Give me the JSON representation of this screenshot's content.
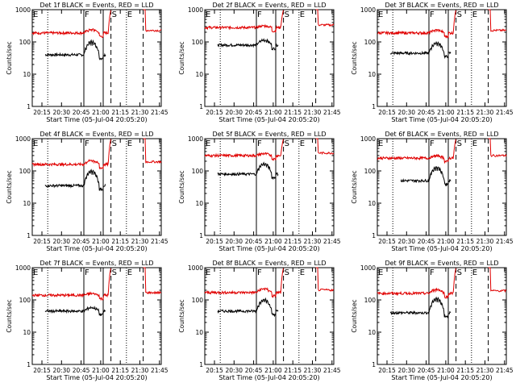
{
  "figure": {
    "ylabel": "Counts/sec",
    "xlabel": "Start Time (05-Jul-04 20:05:20)",
    "black_series_color": "#000000",
    "red_series_color": "#e00000",
    "axes_color": "#000000"
  },
  "chart_data": [
    {
      "type": "line",
      "title": "Det 1f  BLACK = Events, RED = LLD",
      "xlabel": "Start Time (05-Jul-04 20:05:20)",
      "ylabel": "Counts/sec",
      "yscale": "log",
      "x_ticks": [
        "20:15",
        "20:30",
        "20:45",
        "21:00",
        "21:15",
        "21:30",
        "21:45"
      ],
      "y_ticks": [
        "1",
        "10",
        "100",
        "1000"
      ],
      "ylim": [
        1,
        1000
      ],
      "xlim_minutes": [
        0,
        100
      ],
      "series": [
        {
          "color": "black",
          "x_range_minutes": [
            10,
            57
          ],
          "baseline": 40,
          "bump": 110
        },
        {
          "color": "red",
          "x_range_minutes": [
            0,
            100
          ],
          "baseline": 190,
          "bump": 250,
          "spike": 1000
        }
      ],
      "markers": [
        {
          "label": "E",
          "x_minutes": 0,
          "style": "solid"
        },
        {
          "label": "",
          "x_minutes": 12.0,
          "style": "dotted"
        },
        {
          "label": "F",
          "x_minutes": 40.0,
          "style": "solid"
        },
        {
          "label": "",
          "x_minutes": 55.0,
          "style": "solid"
        },
        {
          "label": "S",
          "x_minutes": 61.0,
          "style": "dashed"
        },
        {
          "label": "E",
          "x_minutes": 73.0,
          "style": "dotted"
        },
        {
          "label": "",
          "x_minutes": 86.0,
          "style": "dashed"
        }
      ]
    },
    {
      "type": "line",
      "title": "Det 2f  BLACK = Events, RED = LLD",
      "xlabel": "Start Time (05-Jul-04 20:05:20)",
      "ylabel": "Counts/sec",
      "yscale": "log",
      "x_ticks": [
        "20:15",
        "20:30",
        "20:45",
        "21:00",
        "21:15",
        "21:30",
        "21:45"
      ],
      "y_ticks": [
        "1",
        "10",
        "100",
        "1000"
      ],
      "ylim": [
        1,
        1000
      ],
      "xlim_minutes": [
        0,
        100
      ],
      "series": [
        {
          "color": "black",
          "x_range_minutes": [
            10,
            57
          ],
          "baseline": 80,
          "bump": 120
        },
        {
          "color": "red",
          "x_range_minutes": [
            0,
            100
          ],
          "baseline": 280,
          "bump": 320,
          "spike": 1000
        }
      ],
      "markers": [
        {
          "label": "E",
          "x_minutes": 0,
          "style": "solid"
        },
        {
          "label": "",
          "x_minutes": 12.0,
          "style": "dotted"
        },
        {
          "label": "F",
          "x_minutes": 40.0,
          "style": "solid"
        },
        {
          "label": "",
          "x_minutes": 55.0,
          "style": "solid"
        },
        {
          "label": "S",
          "x_minutes": 61.0,
          "style": "dashed"
        },
        {
          "label": "E",
          "x_minutes": 73.0,
          "style": "dotted"
        },
        {
          "label": "",
          "x_minutes": 86.0,
          "style": "dashed"
        }
      ]
    },
    {
      "type": "line",
      "title": "Det 3f  BLACK = Events, RED = LLD",
      "xlabel": "Start Time (05-Jul-04 20:05:20)",
      "ylabel": "Counts/sec",
      "yscale": "log",
      "x_ticks": [
        "20:15",
        "20:30",
        "20:45",
        "21:00",
        "21:15",
        "21:30",
        "21:45"
      ],
      "y_ticks": [
        "1",
        "10",
        "100",
        "1000"
      ],
      "ylim": [
        1,
        1000
      ],
      "xlim_minutes": [
        0,
        100
      ],
      "series": [
        {
          "color": "black",
          "x_range_minutes": [
            10,
            57
          ],
          "baseline": 45,
          "bump": 100
        },
        {
          "color": "red",
          "x_range_minutes": [
            0,
            100
          ],
          "baseline": 190,
          "bump": 240,
          "spike": 1000
        }
      ],
      "markers": [
        {
          "label": "E",
          "x_minutes": 0,
          "style": "solid"
        },
        {
          "label": "",
          "x_minutes": 12.0,
          "style": "dotted"
        },
        {
          "label": "F",
          "x_minutes": 40.0,
          "style": "solid"
        },
        {
          "label": "",
          "x_minutes": 55.0,
          "style": "solid"
        },
        {
          "label": "S",
          "x_minutes": 61.0,
          "style": "dashed"
        },
        {
          "label": "E",
          "x_minutes": 73.0,
          "style": "dotted"
        },
        {
          "label": "",
          "x_minutes": 86.0,
          "style": "dashed"
        }
      ]
    },
    {
      "type": "line",
      "title": "Det 4f  BLACK = Events, RED = LLD",
      "xlabel": "Start Time (05-Jul-04 20:05:20)",
      "ylabel": "Counts/sec",
      "yscale": "log",
      "x_ticks": [
        "20:15",
        "20:30",
        "20:45",
        "21:00",
        "21:15",
        "21:30",
        "21:45"
      ],
      "y_ticks": [
        "1",
        "10",
        "100",
        "1000"
      ],
      "ylim": [
        1,
        1000
      ],
      "xlim_minutes": [
        0,
        100
      ],
      "series": [
        {
          "color": "black",
          "x_range_minutes": [
            10,
            57
          ],
          "baseline": 35,
          "bump": 110
        },
        {
          "color": "red",
          "x_range_minutes": [
            0,
            100
          ],
          "baseline": 160,
          "bump": 220,
          "spike": 1000
        }
      ],
      "markers": [
        {
          "label": "E",
          "x_minutes": 0,
          "style": "solid"
        },
        {
          "label": "",
          "x_minutes": 12.0,
          "style": "dotted"
        },
        {
          "label": "F",
          "x_minutes": 40.0,
          "style": "solid"
        },
        {
          "label": "",
          "x_minutes": 55.0,
          "style": "solid"
        },
        {
          "label": "S",
          "x_minutes": 61.0,
          "style": "dashed"
        },
        {
          "label": "E",
          "x_minutes": 73.0,
          "style": "dotted"
        },
        {
          "label": "",
          "x_minutes": 86.0,
          "style": "dashed"
        }
      ]
    },
    {
      "type": "line",
      "title": "Det 5f  BLACK = Events, RED = LLD",
      "xlabel": "Start Time (05-Jul-04 20:05:20)",
      "ylabel": "Counts/sec",
      "yscale": "log",
      "x_ticks": [
        "20:15",
        "20:30",
        "20:45",
        "21:00",
        "21:15",
        "21:30",
        "21:45"
      ],
      "y_ticks": [
        "1",
        "10",
        "100",
        "1000"
      ],
      "ylim": [
        1,
        1000
      ],
      "xlim_minutes": [
        0,
        100
      ],
      "series": [
        {
          "color": "black",
          "x_range_minutes": [
            10,
            57
          ],
          "baseline": 80,
          "bump": 180
        },
        {
          "color": "red",
          "x_range_minutes": [
            0,
            100
          ],
          "baseline": 300,
          "bump": 350,
          "spike": 1000
        }
      ],
      "markers": [
        {
          "label": "E",
          "x_minutes": 0,
          "style": "solid"
        },
        {
          "label": "",
          "x_minutes": 12.0,
          "style": "dotted"
        },
        {
          "label": "F",
          "x_minutes": 40.0,
          "style": "solid"
        },
        {
          "label": "",
          "x_minutes": 55.0,
          "style": "solid"
        },
        {
          "label": "S",
          "x_minutes": 61.0,
          "style": "dashed"
        },
        {
          "label": "E",
          "x_minutes": 73.0,
          "style": "dotted"
        },
        {
          "label": "",
          "x_minutes": 86.0,
          "style": "dashed"
        }
      ]
    },
    {
      "type": "line",
      "title": "Det 6f  BLACK = Events, RED = LLD",
      "xlabel": "Start Time (05-Jul-04 20:05:20)",
      "ylabel": "Counts/sec",
      "yscale": "log",
      "x_ticks": [
        "20:15",
        "20:30",
        "20:45",
        "21:00",
        "21:15",
        "21:30",
        "21:45"
      ],
      "y_ticks": [
        "1",
        "10",
        "100",
        "1000"
      ],
      "ylim": [
        1,
        1000
      ],
      "xlim_minutes": [
        0,
        100
      ],
      "series": [
        {
          "color": "black",
          "x_range_minutes": [
            18,
            57
          ],
          "baseline": 50,
          "bump": 140
        },
        {
          "color": "red",
          "x_range_minutes": [
            0,
            100
          ],
          "baseline": 250,
          "bump": 300,
          "spike": 1000
        }
      ],
      "markers": [
        {
          "label": "E",
          "x_minutes": 0,
          "style": "solid"
        },
        {
          "label": "",
          "x_minutes": 12.0,
          "style": "dotted"
        },
        {
          "label": "F",
          "x_minutes": 40.0,
          "style": "solid"
        },
        {
          "label": "",
          "x_minutes": 55.0,
          "style": "solid"
        },
        {
          "label": "S",
          "x_minutes": 61.0,
          "style": "dashed"
        },
        {
          "label": "E",
          "x_minutes": 73.0,
          "style": "dotted"
        },
        {
          "label": "",
          "x_minutes": 86.0,
          "style": "dashed"
        }
      ]
    },
    {
      "type": "line",
      "title": "Det 7f  BLACK = Events, RED = LLD",
      "xlabel": "Start Time (05-Jul-04 20:05:20)",
      "ylabel": "Counts/sec",
      "yscale": "log",
      "x_ticks": [
        "20:15",
        "20:30",
        "20:45",
        "21:00",
        "21:15",
        "21:30",
        "21:45"
      ],
      "y_ticks": [
        "1",
        "10",
        "100",
        "1000"
      ],
      "ylim": [
        1,
        1000
      ],
      "xlim_minutes": [
        0,
        100
      ],
      "series": [
        {
          "color": "black",
          "x_range_minutes": [
            10,
            57
          ],
          "baseline": 45,
          "bump": 60
        },
        {
          "color": "red",
          "x_range_minutes": [
            0,
            100
          ],
          "baseline": 140,
          "bump": 160,
          "spike": 1000
        }
      ],
      "markers": [
        {
          "label": "E",
          "x_minutes": 0,
          "style": "solid"
        },
        {
          "label": "",
          "x_minutes": 12.0,
          "style": "dotted"
        },
        {
          "label": "F",
          "x_minutes": 40.0,
          "style": "solid"
        },
        {
          "label": "",
          "x_minutes": 55.0,
          "style": "solid"
        },
        {
          "label": "S",
          "x_minutes": 61.0,
          "style": "dashed"
        },
        {
          "label": "E",
          "x_minutes": 73.0,
          "style": "dotted"
        },
        {
          "label": "",
          "x_minutes": 86.0,
          "style": "dashed"
        }
      ]
    },
    {
      "type": "line",
      "title": "Det 8f  BLACK = Events, RED = LLD",
      "xlabel": "Start Time (05-Jul-04 20:05:20)",
      "ylabel": "Counts/sec",
      "yscale": "log",
      "x_ticks": [
        "20:15",
        "20:30",
        "20:45",
        "21:00",
        "21:15",
        "21:30",
        "21:45"
      ],
      "y_ticks": [
        "1",
        "10",
        "100",
        "1000"
      ],
      "ylim": [
        1,
        1000
      ],
      "xlim_minutes": [
        0,
        100
      ],
      "series": [
        {
          "color": "black",
          "x_range_minutes": [
            10,
            57
          ],
          "baseline": 45,
          "bump": 110
        },
        {
          "color": "red",
          "x_range_minutes": [
            0,
            100
          ],
          "baseline": 170,
          "bump": 230,
          "spike": 1000
        }
      ],
      "markers": [
        {
          "label": "E",
          "x_minutes": 0,
          "style": "solid"
        },
        {
          "label": "",
          "x_minutes": 12.0,
          "style": "dotted"
        },
        {
          "label": "F",
          "x_minutes": 40.0,
          "style": "solid"
        },
        {
          "label": "",
          "x_minutes": 55.0,
          "style": "solid"
        },
        {
          "label": "S",
          "x_minutes": 61.0,
          "style": "dashed"
        },
        {
          "label": "E",
          "x_minutes": 73.0,
          "style": "dotted"
        },
        {
          "label": "",
          "x_minutes": 86.0,
          "style": "dashed"
        }
      ]
    },
    {
      "type": "line",
      "title": "Det 9f  BLACK = Events, RED = LLD",
      "xlabel": "Start Time (05-Jul-04 20:05:20)",
      "ylabel": "Counts/sec",
      "yscale": "log",
      "x_ticks": [
        "20:15",
        "20:30",
        "20:45",
        "21:00",
        "21:15",
        "21:30",
        "21:45"
      ],
      "y_ticks": [
        "1",
        "10",
        "100",
        "1000"
      ],
      "ylim": [
        1,
        1000
      ],
      "xlim_minutes": [
        0,
        100
      ],
      "series": [
        {
          "color": "black",
          "x_range_minutes": [
            10,
            57
          ],
          "baseline": 40,
          "bump": 120
        },
        {
          "color": "red",
          "x_range_minutes": [
            0,
            100
          ],
          "baseline": 160,
          "bump": 220,
          "spike": 1000
        }
      ],
      "markers": [
        {
          "label": "E",
          "x_minutes": 0,
          "style": "solid"
        },
        {
          "label": "",
          "x_minutes": 12.0,
          "style": "dotted"
        },
        {
          "label": "F",
          "x_minutes": 40.0,
          "style": "solid"
        },
        {
          "label": "",
          "x_minutes": 55.0,
          "style": "solid"
        },
        {
          "label": "S",
          "x_minutes": 61.0,
          "style": "dashed"
        },
        {
          "label": "E",
          "x_minutes": 73.0,
          "style": "dotted"
        },
        {
          "label": "",
          "x_minutes": 86.0,
          "style": "dashed"
        }
      ]
    }
  ]
}
